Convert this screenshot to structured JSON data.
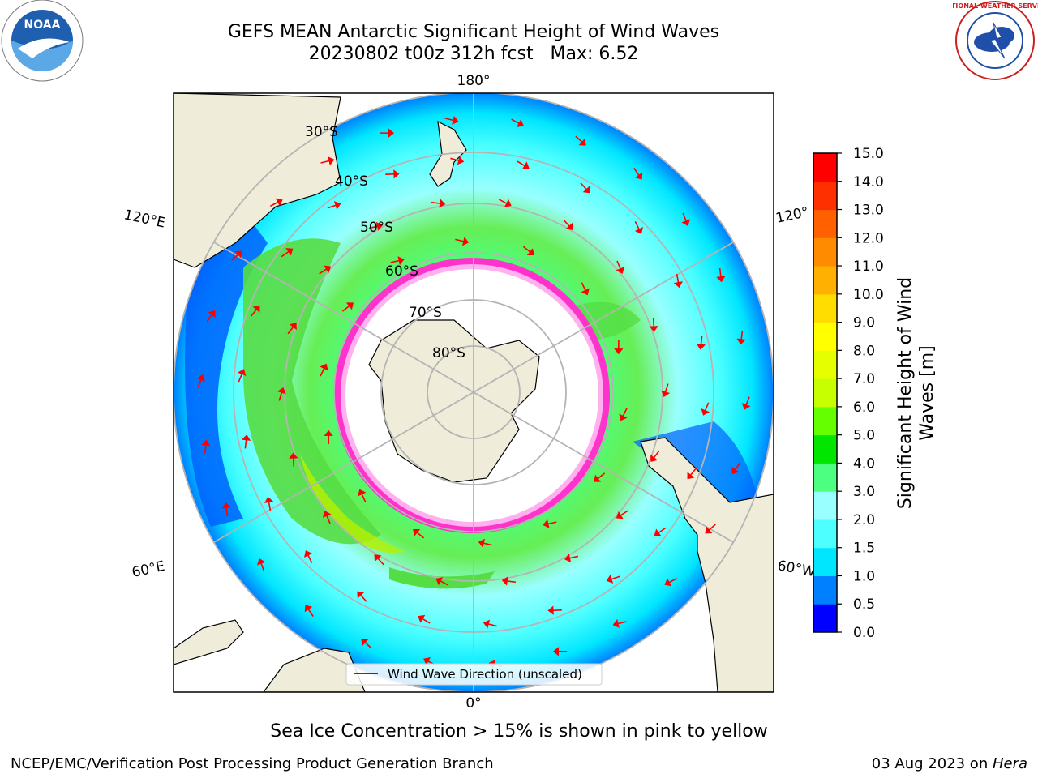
{
  "header": {
    "title_line1": "GEFS MEAN Antarctic Significant Height of Wind Waves",
    "title_line2": "20230802 t00z 312h fcst   Max: 6.52"
  },
  "logos": {
    "left": {
      "name": "noaa-logo",
      "text": "NOAA"
    },
    "right": {
      "name": "national-weather-service-logo",
      "text": "NATIONAL WEATHER SERVICE"
    }
  },
  "map": {
    "longitude_labels": {
      "top": "180°",
      "bottom": "0°",
      "upper_left": "120°E",
      "upper_right": "120°",
      "lower_left": "60°E",
      "lower_right": "60°W"
    },
    "latitude_labels": [
      "30°S",
      "40°S",
      "50°S",
      "60°S",
      "70°S",
      "80°S"
    ],
    "legend": "Wind Wave Direction (unscaled)",
    "colors": {
      "land": "#efedda",
      "ice_free_interior": "#ffffff",
      "sea_ice_edge": "#ff33cc",
      "arrows": "#ff0000",
      "grid": "#b4b4b4"
    }
  },
  "colorbar": {
    "label_line1": "Significant Height of Wind",
    "label_line2": "Waves [m]",
    "ticks": [
      "0.0",
      "0.5",
      "1.0",
      "1.5",
      "2.0",
      "3.0",
      "4.0",
      "5.0",
      "6.0",
      "7.0",
      "8.0",
      "9.0",
      "10.0",
      "11.0",
      "12.0",
      "13.0",
      "14.0",
      "15.0"
    ],
    "colors": [
      "#0000ff",
      "#0080ff",
      "#00e6ff",
      "#4dffff",
      "#99ffff",
      "#4dff80",
      "#00e600",
      "#66ff00",
      "#c8ff00",
      "#e6ff00",
      "#ffff00",
      "#ffdd00",
      "#ffb000",
      "#ff8c00",
      "#ff6000",
      "#ff3000",
      "#ff0000"
    ]
  },
  "caption": "Sea Ice Concentration > 15% is shown in pink to yellow",
  "footer": {
    "left": "NCEP/EMC/Verification Post Processing Product Generation Branch",
    "date": "03 Aug 2023 on ",
    "host": "Hera"
  }
}
